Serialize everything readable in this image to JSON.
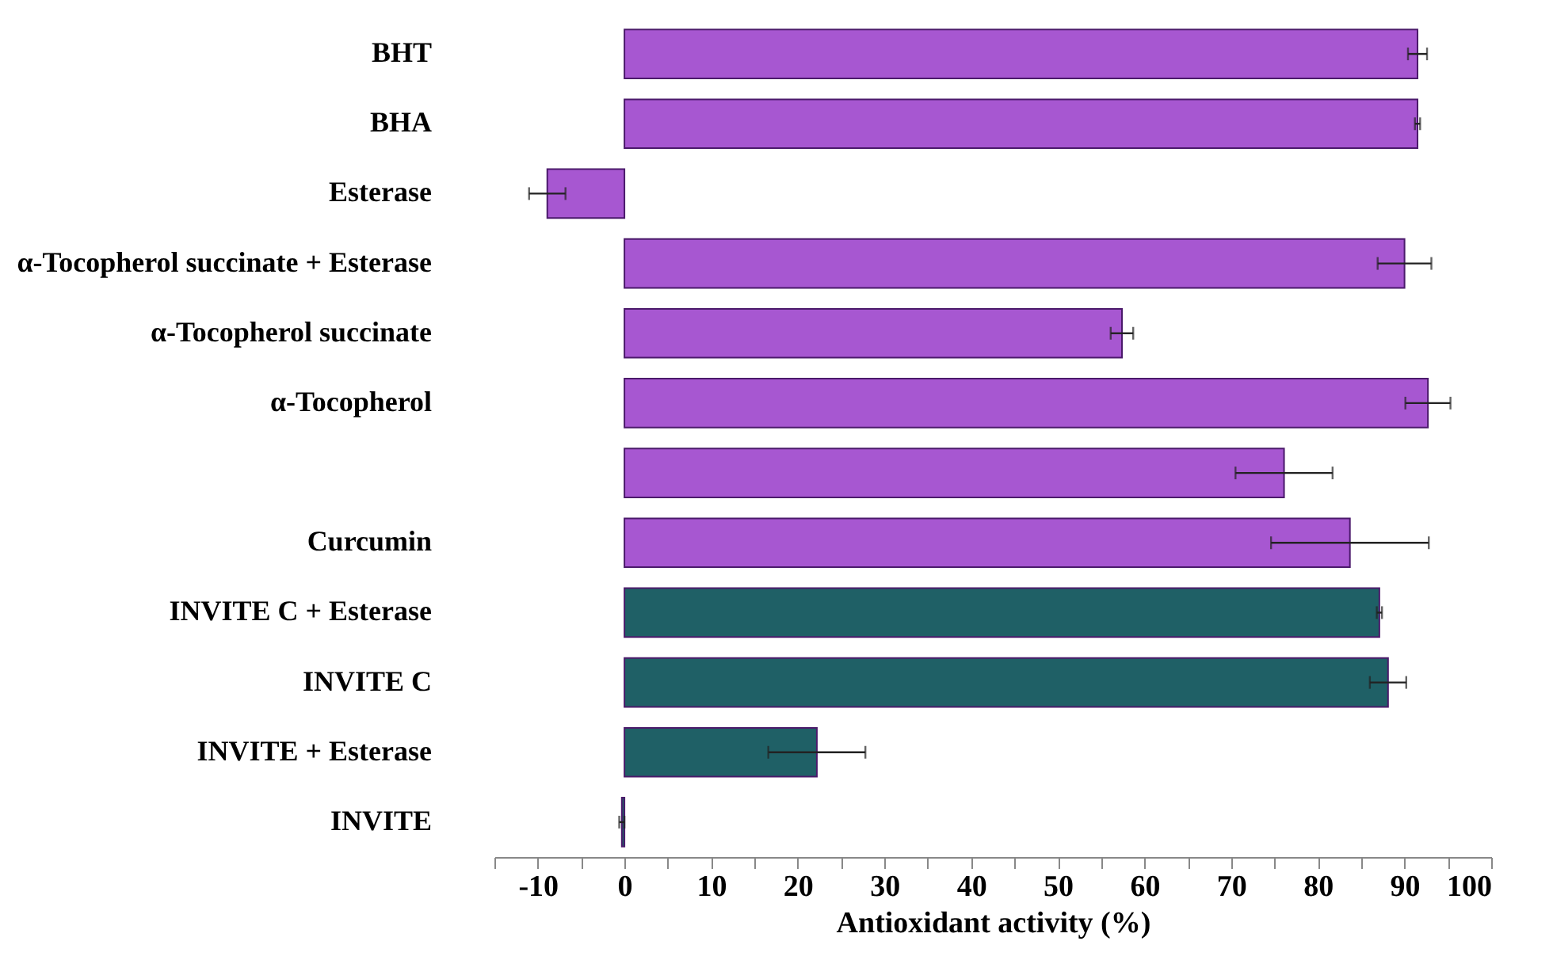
{
  "chart_data": {
    "type": "bar",
    "orientation": "horizontal",
    "xlabel": "Antioxidant activity (%)",
    "categories": [
      "BHT",
      "BHA",
      "Esterase",
      "α-Tocopherol succinate + Esterase",
      "α-Tocopherol succinate",
      "α-Tocopherol",
      null,
      "Curcumin",
      "INVITE C + Esterase",
      "INVITE C",
      "INVITE + Esterase",
      "INVITE"
    ],
    "values": [
      91.5,
      91.5,
      -8.9,
      90.0,
      57.4,
      92.7,
      76.1,
      83.7,
      87.1,
      88.1,
      22.2,
      -0.3
    ],
    "errors": [
      1.1,
      0.3,
      2.1,
      3.1,
      1.3,
      2.6,
      5.6,
      9.1,
      0.3,
      2.1,
      5.6,
      0.3
    ],
    "colors": [
      "#a757d1",
      "#a757d1",
      "#a757d1",
      "#a757d1",
      "#a757d1",
      "#a757d1",
      "#a757d1",
      "#a757d1",
      "#1f6066",
      "#1f6066",
      "#1f6066",
      "#1f6066"
    ],
    "xlim": [
      -15,
      100
    ],
    "xticks": [
      {
        "value": -15,
        "label": null
      },
      -10,
      {
        "value": -5,
        "label": null
      },
      0,
      {
        "value": 5,
        "label": null
      },
      10,
      {
        "value": 15,
        "label": null
      },
      20,
      {
        "value": 25,
        "label": null
      },
      30,
      {
        "value": 35,
        "label": null
      },
      40,
      {
        "value": 45,
        "label": null
      },
      50,
      {
        "value": 55,
        "label": null
      },
      60,
      {
        "value": 65,
        "label": null
      },
      70,
      {
        "value": 75,
        "label": null
      },
      80,
      {
        "value": 85,
        "label": null
      },
      90,
      {
        "value": 95,
        "label": null
      },
      100
    ],
    "grid": false
  }
}
